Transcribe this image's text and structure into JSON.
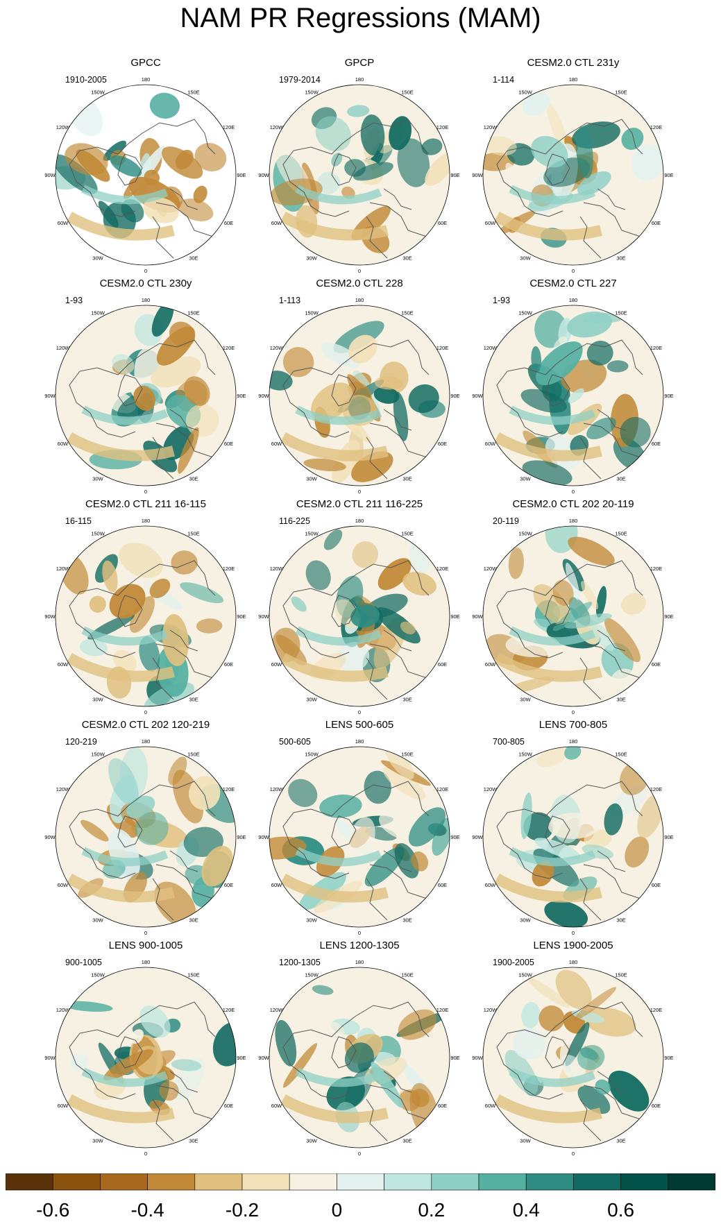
{
  "title": "NAM PR Regressions (MAM)",
  "lon_labels": [
    "180",
    "150E",
    "120E",
    "90E",
    "60E",
    "30E",
    "0",
    "30W",
    "60W",
    "90W",
    "120W",
    "150W"
  ],
  "panels": [
    {
      "title": "GPCC",
      "period": "1910-2005"
    },
    {
      "title": "GPCP",
      "period": "1979-2014"
    },
    {
      "title": "CESM2.0 CTL 231y",
      "period": "1-114"
    },
    {
      "title": "CESM2.0 CTL 230y",
      "period": "1-93"
    },
    {
      "title": "CESM2.0 CTL 228",
      "period": "1-113"
    },
    {
      "title": "CESM2.0 CTL 227",
      "period": "1-93"
    },
    {
      "title": "CESM2.0 CTL 211 16-115",
      "period": "16-115"
    },
    {
      "title": "CESM2.0 CTL 211 116-225",
      "period": "116-225"
    },
    {
      "title": "CESM2.0 CTL 202 20-119",
      "period": "20-119"
    },
    {
      "title": "CESM2.0 CTL 202 120-219",
      "period": "120-219"
    },
    {
      "title": "LENS 500-605",
      "period": "500-605"
    },
    {
      "title": "LENS 700-805",
      "period": "700-805"
    },
    {
      "title": "LENS 900-1005",
      "period": "900-1005"
    },
    {
      "title": "LENS 1200-1305",
      "period": "1200-1305"
    },
    {
      "title": "LENS 1900-2005",
      "period": "1900-2005"
    }
  ],
  "colorbar": {
    "colors": [
      "#5a3209",
      "#8a520f",
      "#a8681e",
      "#c18937",
      "#e0c07f",
      "#f2e1b8",
      "#f6f1e2",
      "#e2f1ee",
      "#bfe6df",
      "#8fd0c5",
      "#56b0a2",
      "#2e8c82",
      "#126b62",
      "#03524a",
      "#003a30"
    ],
    "tick_labels": [
      "-0.6",
      "-0.4",
      "-0.2",
      "0",
      "0.2",
      "0.4",
      "0.6"
    ],
    "tick_values": [
      -0.6,
      -0.4,
      -0.2,
      0,
      0.2,
      0.4,
      0.6
    ],
    "range": [
      -0.7,
      0.8
    ]
  }
}
